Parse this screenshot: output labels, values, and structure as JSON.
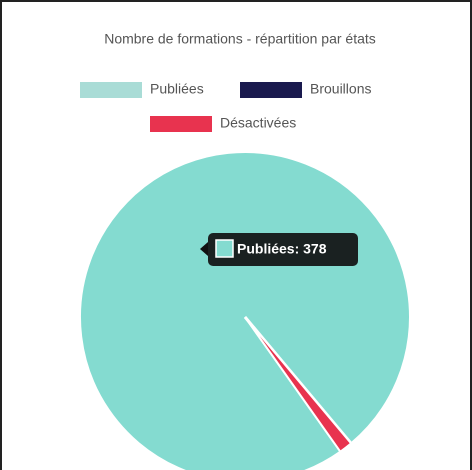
{
  "chart_data": {
    "type": "pie",
    "title": "Nombre de formations - répartition par états",
    "series": [
      {
        "name": "Publiées",
        "color": "#84dbd0",
        "legend_color": "#a9dcd6",
        "values": [
          378
        ]
      },
      {
        "name": "Brouillons",
        "color": "#1a1a4e",
        "legend_color": "#1a1a4e",
        "values": [
          0
        ]
      },
      {
        "name": "Désactivées",
        "color": "#e8334f",
        "legend_color": "#e8334f",
        "values": [
          5
        ]
      }
    ],
    "tooltip": {
      "label": "Publiées: 378",
      "series": 0
    }
  }
}
